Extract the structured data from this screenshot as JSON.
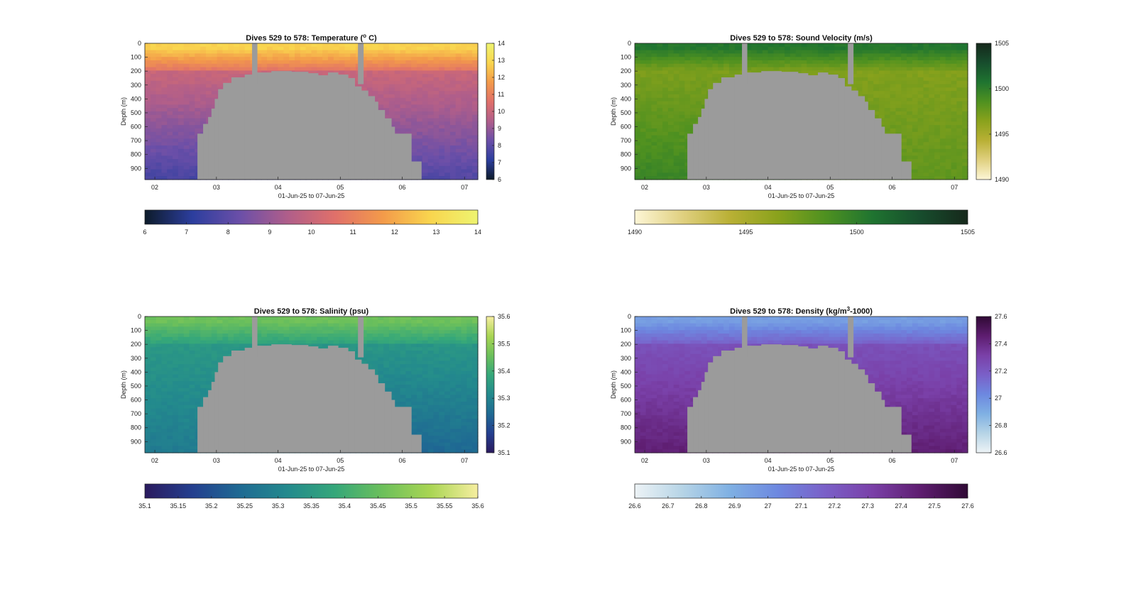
{
  "chart_data": [
    {
      "type": "heatmap",
      "title": "Dives 529 to 578: Temperature (° C)",
      "title_parts": [
        "Dives 529 to 578: Temperature (",
        "o",
        " C)"
      ],
      "xlabel": "01-Jun-25 to 07-Jun-25",
      "ylabel": "Depth (m)",
      "x_ticks": [
        "02",
        "03",
        "04",
        "05",
        "06",
        "07"
      ],
      "y_ticks": [
        "0",
        "100",
        "200",
        "300",
        "400",
        "500",
        "600",
        "700",
        "800",
        "900"
      ],
      "ylim": [
        0,
        980
      ],
      "colorbar_ticks": [
        "6",
        "7",
        "8",
        "9",
        "10",
        "11",
        "12",
        "13",
        "14"
      ],
      "colorbar_side_ticks": [
        "6",
        "7",
        "8",
        "9",
        "10",
        "11",
        "12",
        "13",
        "14"
      ],
      "clim": [
        6,
        14
      ],
      "colormap": [
        "#0d1b2a",
        "#2c3e9e",
        "#6b4fa8",
        "#b05e8a",
        "#e0706a",
        "#f39a4a",
        "#f9d54e",
        "#eef470"
      ],
      "surface_value": 12.8,
      "deep_value_left": 7.6,
      "deep_value_right": 7.8,
      "mid_value": 10.4
    },
    {
      "type": "heatmap",
      "title": "Dives 529 to 578: Sound Velocity (m/s)",
      "title_parts": [
        "Dives 529 to 578: Sound Velocity (m/s)"
      ],
      "xlabel": "01-Jun-25 to 07-Jun-25",
      "ylabel": "Depth (m)",
      "x_ticks": [
        "02",
        "03",
        "04",
        "05",
        "06",
        "07"
      ],
      "y_ticks": [
        "0",
        "100",
        "200",
        "300",
        "400",
        "500",
        "600",
        "700",
        "800",
        "900"
      ],
      "ylim": [
        0,
        980
      ],
      "colorbar_ticks": [
        "1490",
        "1495",
        "1500",
        "1505"
      ],
      "colorbar_side_ticks": [
        "1490",
        "1495",
        "1500",
        "1505"
      ],
      "clim": [
        1490,
        1505
      ],
      "colormap": [
        "#fdf6d6",
        "#e0d080",
        "#b9b035",
        "#8aa21c",
        "#4f9120",
        "#1f7430",
        "#174d2d",
        "#16281b"
      ],
      "surface_value": 1500.5,
      "deep_value_left": 1499.5,
      "deep_value_right": 1498.0,
      "mid_value": 1496.5
    },
    {
      "type": "heatmap",
      "title": "Dives 529 to 578: Salinity (psu)",
      "title_parts": [
        "Dives 529 to 578: Salinity (psu)"
      ],
      "xlabel": "01-Jun-25 to 07-Jun-25",
      "ylabel": "Depth (m)",
      "x_ticks": [
        "02",
        "03",
        "04",
        "05",
        "06",
        "07"
      ],
      "y_ticks": [
        "0",
        "100",
        "200",
        "300",
        "400",
        "500",
        "600",
        "700",
        "800",
        "900"
      ],
      "ylim": [
        0,
        980
      ],
      "colorbar_ticks": [
        "35.1",
        "35.15",
        "35.2",
        "35.25",
        "35.3",
        "35.35",
        "35.4",
        "35.45",
        "35.5",
        "35.55",
        "35.6"
      ],
      "colorbar_side_ticks": [
        "35.1",
        "35.2",
        "35.3",
        "35.4",
        "35.5",
        "35.6"
      ],
      "clim": [
        35.1,
        35.6
      ],
      "colormap": [
        "#2a1a5e",
        "#243f8f",
        "#1f6a93",
        "#238a8d",
        "#35a77a",
        "#6cc05b",
        "#a9d553",
        "#f6eea0"
      ],
      "surface_value": 35.46,
      "deep_value_left": 35.28,
      "deep_value_right": 35.24,
      "mid_value": 35.36
    },
    {
      "type": "heatmap",
      "title": "Dives 529 to 578: Density (kg/m³-1000)",
      "title_parts": [
        "Dives 529 to 578: Density (kg/m",
        "3",
        "-1000)"
      ],
      "xlabel": "01-Jun-25 to 07-Jun-25",
      "ylabel": "Depth (m)",
      "x_ticks": [
        "02",
        "03",
        "04",
        "05",
        "06",
        "07"
      ],
      "y_ticks": [
        "0",
        "100",
        "200",
        "300",
        "400",
        "500",
        "600",
        "700",
        "800",
        "900"
      ],
      "ylim": [
        0,
        980
      ],
      "colorbar_ticks": [
        "26.6",
        "26.7",
        "26.8",
        "26.9",
        "27",
        "27.1",
        "27.2",
        "27.3",
        "27.4",
        "27.5",
        "27.6"
      ],
      "colorbar_side_ticks": [
        "26.6",
        "26.8",
        "27",
        "27.2",
        "27.4",
        "27.6"
      ],
      "clim": [
        26.6,
        27.6
      ],
      "colormap": [
        "#edf3f6",
        "#b6d4e6",
        "#7fb0e3",
        "#6d88e0",
        "#7a60c8",
        "#7a40a8",
        "#5e1d70",
        "#300a35"
      ],
      "surface_value": 26.95,
      "deep_value_left": 27.45,
      "deep_value_right": 27.45,
      "mid_value": 27.2
    }
  ],
  "colors": {
    "mask": "#9b9b9b",
    "background": "#ffffff",
    "axis": "#222222"
  }
}
